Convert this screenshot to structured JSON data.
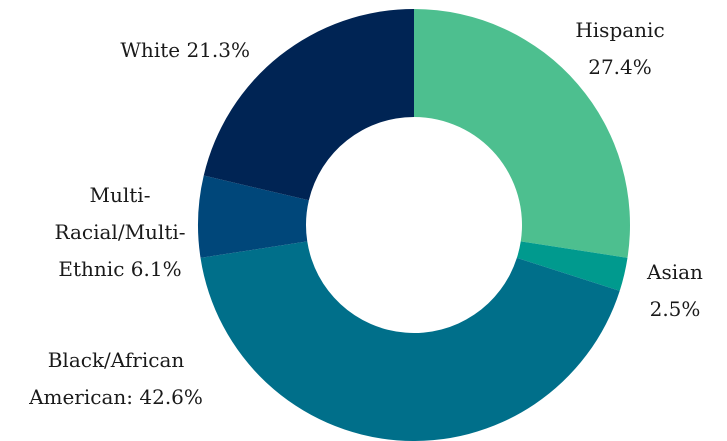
{
  "chart_data": {
    "type": "donut",
    "categories": [
      "Hispanic",
      "Asian",
      "Black/African American:",
      "Multi-Racial/Multi-Ethnic",
      "White"
    ],
    "values": [
      27.4,
      2.5,
      42.6,
      6.1,
      21.3
    ],
    "value_labels": [
      "27.4%",
      "2.5%",
      "42.6%",
      "6.1%",
      "21.3%"
    ],
    "colors": [
      "#4dbf8f",
      "#009a8e",
      "#006f8a",
      "#00477a",
      "#002454"
    ]
  }
}
